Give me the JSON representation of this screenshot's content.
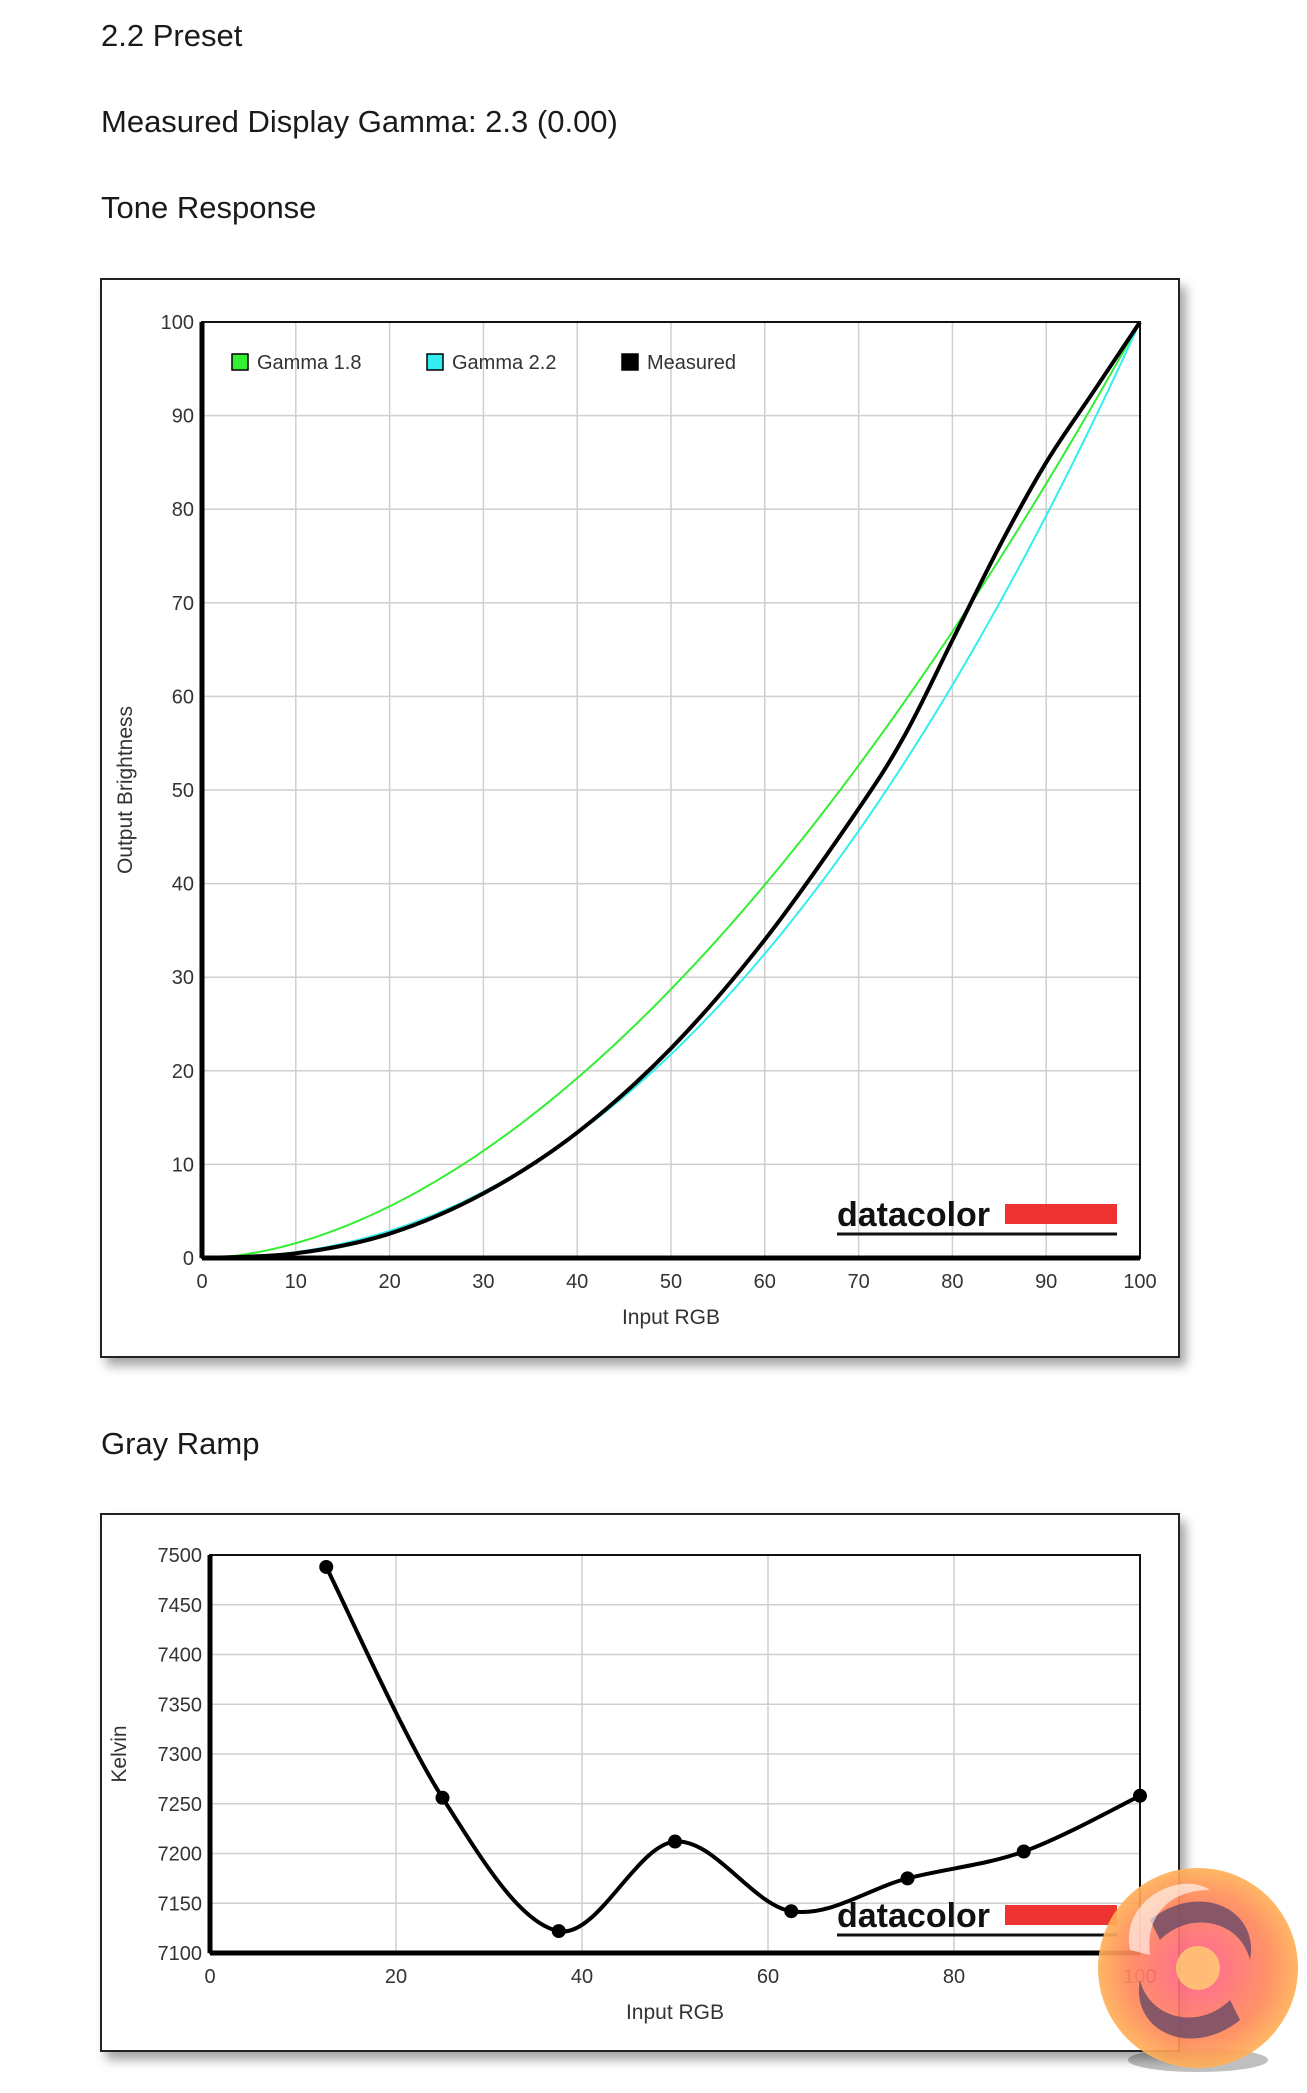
{
  "header": {
    "preset": "2.2 Preset",
    "measured_gamma": "Measured Display Gamma: 2.3 (0.00)",
    "tone_title": "Tone Response",
    "gray_title": "Gray Ramp"
  },
  "logo": {
    "text": "datacolor",
    "bar_color": "#ee3333"
  },
  "watermark": {
    "icon": "kitguru-swirl-logo"
  },
  "chart_data": [
    {
      "type": "line",
      "title": "Tone Response",
      "xlabel": "Input RGB",
      "ylabel": "Output Brightness",
      "xlim": [
        0,
        100
      ],
      "ylim": [
        0,
        100
      ],
      "xticks": [
        0,
        10,
        20,
        30,
        40,
        50,
        60,
        70,
        80,
        90,
        100
      ],
      "yticks": [
        0,
        10,
        20,
        30,
        40,
        50,
        60,
        70,
        80,
        90,
        100
      ],
      "grid": true,
      "legend": "top-left",
      "series": [
        {
          "name": "Gamma 1.8",
          "color": "#33ee33",
          "gamma": 1.8,
          "x": [
            0,
            10,
            20,
            30,
            40,
            50,
            60,
            70,
            80,
            90,
            100
          ],
          "y": [
            0,
            1.6,
            5.5,
            11.5,
            19.2,
            28.7,
            39.9,
            52.6,
            66.9,
            82.7,
            100
          ]
        },
        {
          "name": "Gamma 2.2",
          "color": "#33eeee",
          "gamma": 2.2,
          "x": [
            0,
            10,
            20,
            30,
            40,
            50,
            60,
            70,
            80,
            90,
            100
          ],
          "y": [
            0,
            0.6,
            2.9,
            7.1,
            13.3,
            21.8,
            32.5,
            45.6,
            61.2,
            79.3,
            100
          ]
        },
        {
          "name": "Measured",
          "color": "#000000",
          "x": [
            0,
            10,
            20,
            30,
            40,
            50,
            60,
            70,
            75,
            80,
            85,
            90,
            95,
            100
          ],
          "y": [
            0,
            0.5,
            2.6,
            6.9,
            13.4,
            22.4,
            34,
            48,
            56,
            66,
            76,
            85,
            92.5,
            100
          ]
        }
      ]
    },
    {
      "type": "line",
      "title": "Gray Ramp",
      "xlabel": "Input RGB",
      "ylabel": "Kelvin",
      "xlim": [
        0,
        100
      ],
      "ylim": [
        7100,
        7500
      ],
      "xticks": [
        0,
        20,
        40,
        60,
        80,
        100
      ],
      "yticks": [
        7100,
        7150,
        7200,
        7250,
        7300,
        7350,
        7400,
        7450,
        7500
      ],
      "grid": true,
      "series": [
        {
          "color": "#000000",
          "x": [
            12.5,
            25,
            37.5,
            50,
            62.5,
            75,
            87.5,
            100
          ],
          "y": [
            7488,
            7256,
            7122,
            7212,
            7142,
            7175,
            7202,
            7258
          ]
        }
      ]
    }
  ]
}
